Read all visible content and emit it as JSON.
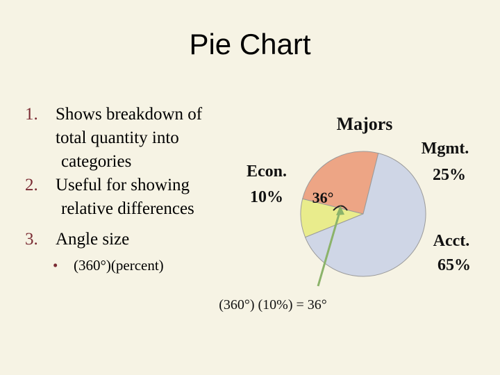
{
  "slide": {
    "title": "Pie Chart",
    "items": [
      {
        "num": "1.",
        "lines": [
          "Shows breakdown of",
          "total quantity into",
          "categories"
        ]
      },
      {
        "num": "2.",
        "lines": [
          "Useful for showing",
          "relative differences"
        ]
      },
      {
        "num": "3.",
        "lines": [
          "Angle size"
        ]
      }
    ],
    "sub_bullet": {
      "marker": "•",
      "text": "(360°)(percent)"
    }
  },
  "chart_data": {
    "type": "pie",
    "title": "Majors",
    "slices": [
      {
        "name": "Econ.",
        "value": 10,
        "label": "10%",
        "color": "#e9ec8c"
      },
      {
        "name": "Mgmt.",
        "value": 25,
        "label": "25%",
        "color": "#eda585"
      },
      {
        "name": "Acct.",
        "value": 65,
        "label": "65%",
        "color": "#cfd6e6"
      }
    ],
    "annotation": {
      "angle_label": "36°",
      "formula": "(360°) (10%) = 36°",
      "arrow_color": "#8bb36a"
    }
  }
}
